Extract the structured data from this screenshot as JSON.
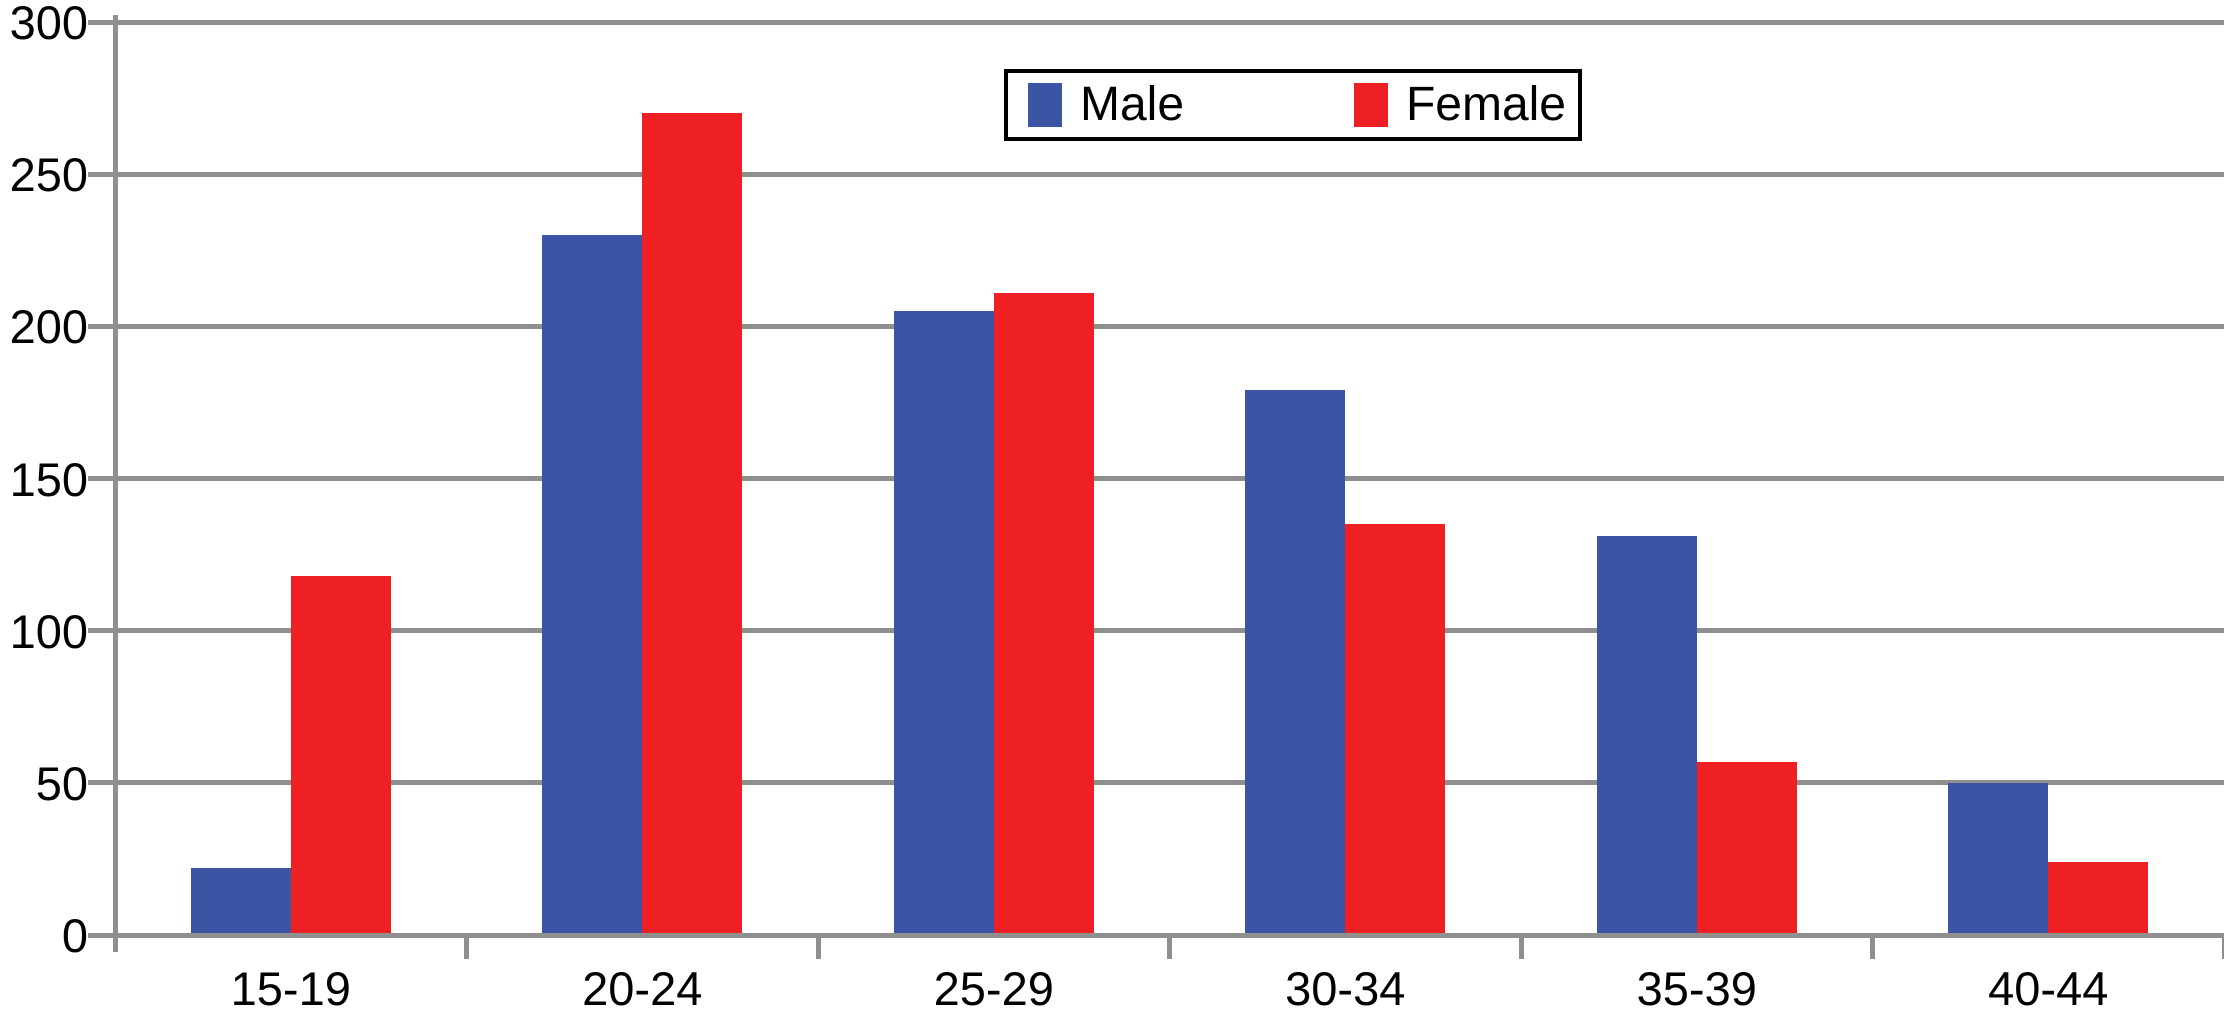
{
  "chart_data": {
    "type": "bar",
    "title": "",
    "xlabel": "",
    "ylabel": "",
    "categories": [
      "15-19",
      "20-24",
      "25-29",
      "30-34",
      "35-39",
      "40-44"
    ],
    "series": [
      {
        "name": "Male",
        "color": "#3B54A4",
        "values": [
          22,
          230,
          205,
          179,
          131,
          50
        ]
      },
      {
        "name": "Female",
        "color": "#EE2024",
        "values": [
          118,
          270,
          211,
          135,
          57,
          24
        ]
      }
    ],
    "ylim": [
      0,
      300
    ],
    "y_ticks": [
      0,
      50,
      100,
      150,
      200,
      250,
      300
    ],
    "grid": "horizontal gridlines every 50",
    "gridline_color": "#8F8F8F",
    "legend_position": "top-center",
    "legend_border_color": "#000000",
    "background_color": "#FFFFFF"
  }
}
